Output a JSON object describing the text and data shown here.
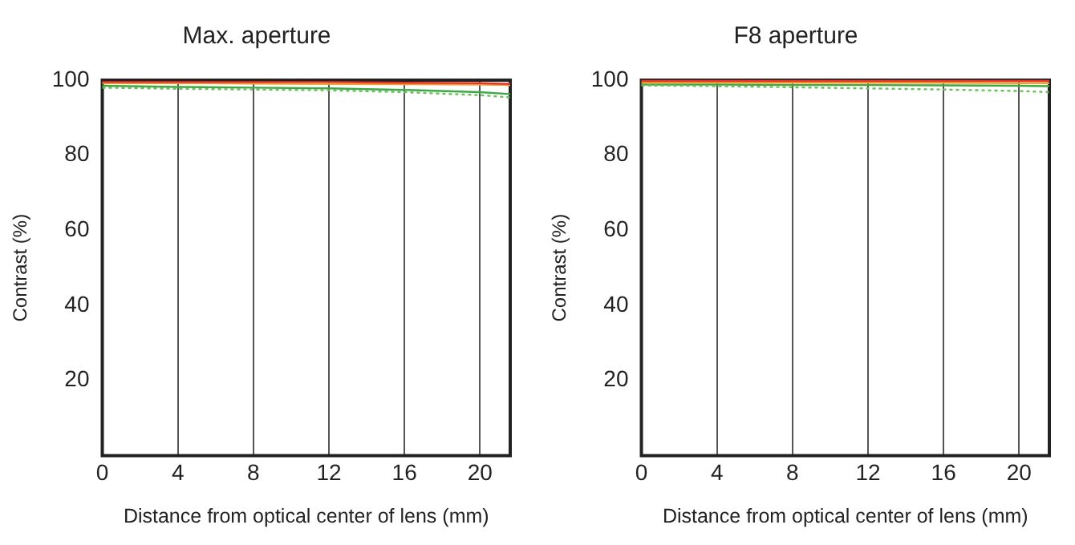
{
  "chart_data": [
    {
      "type": "line",
      "title": "Max. aperture",
      "xlabel": "Distance from optical center of lens (mm)",
      "ylabel": "Contrast (%)",
      "x": [
        0,
        4,
        8,
        12,
        16,
        20,
        21.6
      ],
      "xlim": [
        0,
        21.6
      ],
      "xticks": [
        0,
        4,
        8,
        12,
        16,
        20
      ],
      "ylim": [
        0,
        100
      ],
      "yticks": [
        20,
        40,
        60,
        80,
        100
      ],
      "grid": "x",
      "marker": "none",
      "series": [
        {
          "color": "#e53528",
          "line_style": "solid",
          "values": [
            99.5,
            99.5,
            99.5,
            99.5,
            99.3,
            99.2,
            99.0
          ]
        },
        {
          "color": "#f0a030",
          "line_style": "solid",
          "values": [
            99.2,
            99.2,
            99.1,
            99.0,
            98.9,
            98.8,
            98.7
          ]
        },
        {
          "color": "#3fa845",
          "line_style": "solid",
          "values": [
            98.5,
            98.2,
            98.0,
            97.8,
            97.4,
            96.8,
            96.3
          ]
        },
        {
          "color": "#6abf5a",
          "line_style": "dotted",
          "values": [
            98.0,
            97.7,
            97.5,
            97.3,
            96.8,
            96.0,
            95.4
          ]
        }
      ]
    },
    {
      "type": "line",
      "title": "F8 aperture",
      "xlabel": "Distance from optical center of lens (mm)",
      "ylabel": "Contrast (%)",
      "x": [
        0,
        4,
        8,
        12,
        16,
        20,
        21.6
      ],
      "xlim": [
        0,
        21.6
      ],
      "xticks": [
        0,
        4,
        8,
        12,
        16,
        20
      ],
      "ylim": [
        0,
        100
      ],
      "yticks": [
        20,
        40,
        60,
        80,
        100
      ],
      "grid": "x",
      "marker": "none",
      "series": [
        {
          "color": "#6abf5a",
          "line_style": "dotted",
          "values": [
            98.6,
            98.4,
            98.1,
            97.8,
            97.5,
            97.1,
            96.8
          ]
        },
        {
          "color": "#3fa845",
          "line_style": "solid",
          "values": [
            98.8,
            98.8,
            98.7,
            98.7,
            98.6,
            98.5,
            98.4
          ]
        },
        {
          "color": "#e53528",
          "line_style": "solid",
          "values": [
            99.8,
            99.8,
            99.8,
            99.8,
            99.8,
            99.8,
            99.8
          ]
        },
        {
          "color": "#f0a030",
          "line_style": "solid",
          "values": [
            99.3,
            99.3,
            99.3,
            99.3,
            99.3,
            99.2,
            99.2
          ]
        }
      ]
    }
  ]
}
